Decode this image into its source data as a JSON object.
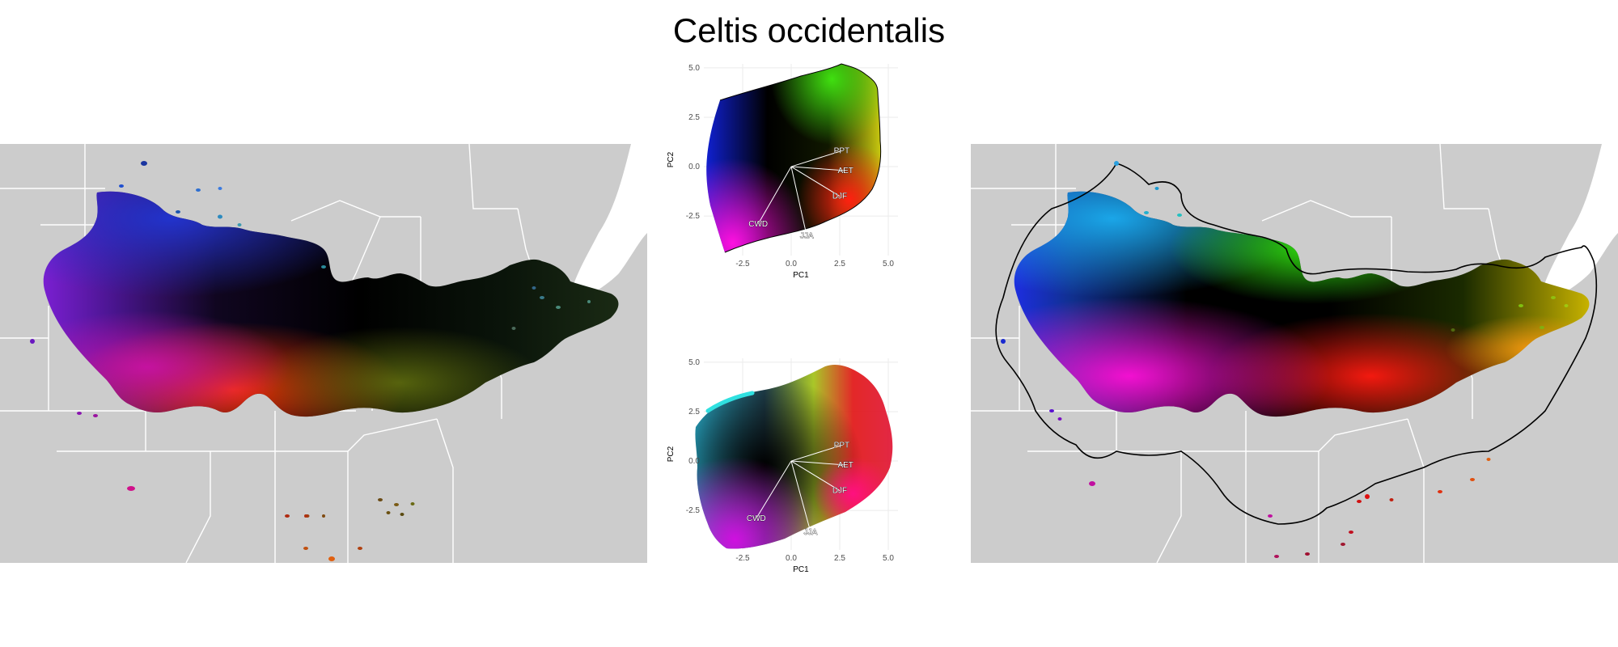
{
  "figure": {
    "title": "Celtis occidentalis"
  },
  "colors": {
    "map_background": "#cccccc",
    "state_lines": "#ffffff",
    "hull_line": "#000000",
    "grid": "#ebebeb"
  },
  "panels": {
    "left_map": {
      "type": "map",
      "description_color": "rgb-pca"
    },
    "right_map": {
      "type": "map",
      "hull_outline": true
    }
  },
  "chart_data": [
    {
      "type": "scatter",
      "panel": "pca-top",
      "xlabel": "PC1",
      "ylabel": "PC2",
      "xlim": [
        -4.5,
        5.5
      ],
      "ylim": [
        -4.5,
        5.2
      ],
      "xticks": [
        "-2.5",
        "0.0",
        "2.5",
        "5.0"
      ],
      "yticks": [
        "5.0",
        "2.5",
        "0.0",
        "-2.5"
      ],
      "xtick_values": [
        -2.5,
        0,
        2.5,
        5
      ],
      "ytick_values": [
        5,
        2.5,
        0,
        -2.5
      ],
      "grid": true,
      "vectors": [
        {
          "label": "PPT",
          "x": 2.6,
          "y": 0.8
        },
        {
          "label": "AET",
          "x": 2.8,
          "y": -0.2
        },
        {
          "label": "DJF",
          "x": 2.5,
          "y": -1.5
        },
        {
          "label": "JJA",
          "x": 0.8,
          "y": -3.5
        },
        {
          "label": "CWD",
          "x": -1.7,
          "y": -2.9
        }
      ]
    },
    {
      "type": "scatter",
      "panel": "pca-bottom",
      "xlabel": "PC1",
      "ylabel": "PC2",
      "xlim": [
        -4.5,
        5.5
      ],
      "ylim": [
        -4.5,
        5.2
      ],
      "xticks": [
        "-2.5",
        "0.0",
        "2.5",
        "5.0"
      ],
      "yticks": [
        "5.0",
        "2.5",
        "0.0",
        "-2.5"
      ],
      "xtick_values": [
        -2.5,
        0,
        2.5,
        5
      ],
      "ytick_values": [
        5,
        2.5,
        0,
        -2.5
      ],
      "grid": true,
      "vectors": [
        {
          "label": "PPT",
          "x": 2.6,
          "y": 0.8
        },
        {
          "label": "AET",
          "x": 2.8,
          "y": -0.2
        },
        {
          "label": "DJF",
          "x": 2.5,
          "y": -1.5
        },
        {
          "label": "JJA",
          "x": 1.0,
          "y": -3.6
        },
        {
          "label": "CWD",
          "x": -1.8,
          "y": -2.9
        }
      ]
    }
  ]
}
